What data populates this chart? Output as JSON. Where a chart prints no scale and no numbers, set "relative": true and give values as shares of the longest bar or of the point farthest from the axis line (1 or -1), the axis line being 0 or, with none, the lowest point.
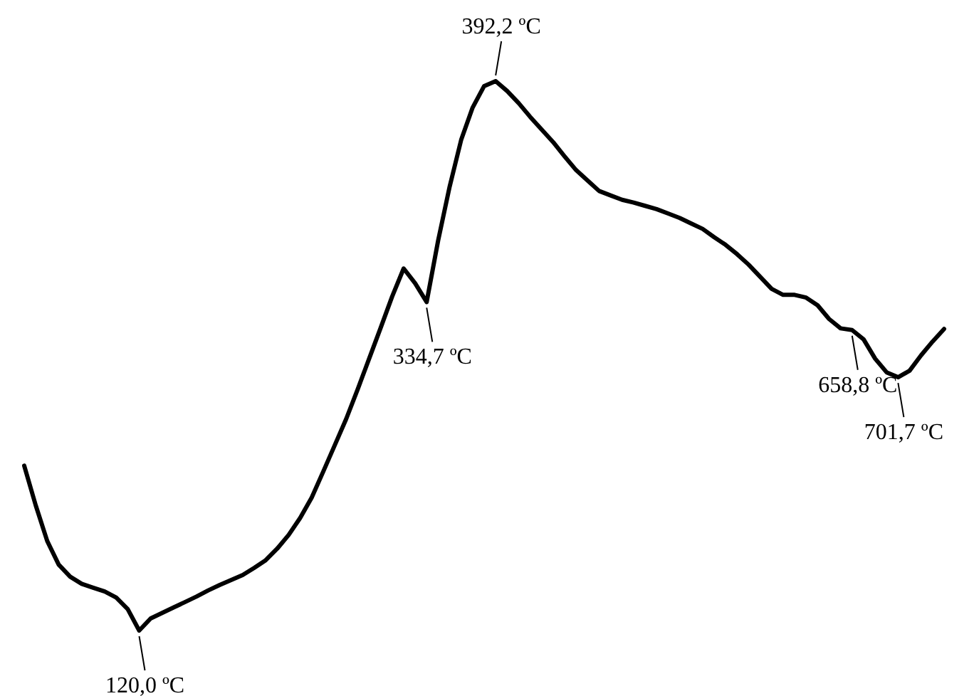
{
  "chart_data": {
    "type": "line",
    "relative": true,
    "grid": false,
    "marker": "none",
    "line_style": "solid",
    "categories": [
      null,
      null,
      null,
      null,
      null,
      null,
      null,
      null,
      null,
      null,
      null,
      null,
      null,
      null,
      null,
      null,
      null,
      null,
      null,
      null,
      null,
      null,
      null,
      null,
      null,
      null,
      null,
      null,
      null,
      null,
      null,
      null,
      null,
      null,
      null,
      null,
      null,
      null,
      null,
      null,
      null,
      null,
      null,
      null,
      null,
      null,
      null,
      null,
      null,
      null,
      null,
      null,
      null,
      null,
      null,
      null,
      null,
      null,
      null,
      null,
      null,
      null,
      null,
      null,
      null,
      null,
      null,
      null,
      null,
      null,
      null,
      null,
      null,
      null,
      null,
      null,
      null,
      null,
      null,
      null,
      null
    ],
    "series": [
      {
        "color": "#000000",
        "values": [
          0.3,
          0.228,
          0.163,
          0.12,
          0.098,
          0.085,
          0.078,
          0.071,
          0.06,
          0.039,
          0,
          0.022,
          0.032,
          0.042,
          0.052,
          0.062,
          0.073,
          0.083,
          0.092,
          0.101,
          0.114,
          0.128,
          0.149,
          0.174,
          0.205,
          0.242,
          0.289,
          0.337,
          0.385,
          0.439,
          0.495,
          0.551,
          0.608,
          0.659,
          0.632,
          0.598,
          0.71,
          0.808,
          0.893,
          0.952,
          0.991,
          1,
          0.982,
          0.96,
          0.935,
          0.912,
          0.889,
          0.863,
          0.838,
          0.819,
          0.8,
          0.792,
          0.784,
          0.779,
          0.773,
          0.767,
          0.759,
          0.751,
          0.741,
          0.731,
          0.716,
          0.702,
          0.685,
          0.666,
          0.644,
          0.622,
          0.611,
          0.611,
          0.606,
          0.592,
          0.567,
          0.55,
          0.547,
          0.53,
          0.495,
          0.47,
          0.461,
          0.473,
          0.501,
          0.526,
          0.549
        ]
      }
    ],
    "annotations": [
      {
        "text": "120,0 ºC",
        "y": 0
      },
      {
        "text": "334,7 ºC",
        "y": 0.598
      },
      {
        "text": "392,2 ºC",
        "y": 1
      },
      {
        "text": "658,8 ºC",
        "y": 0.547
      },
      {
        "text": "701,7 ºC",
        "y": 0.461
      }
    ]
  }
}
